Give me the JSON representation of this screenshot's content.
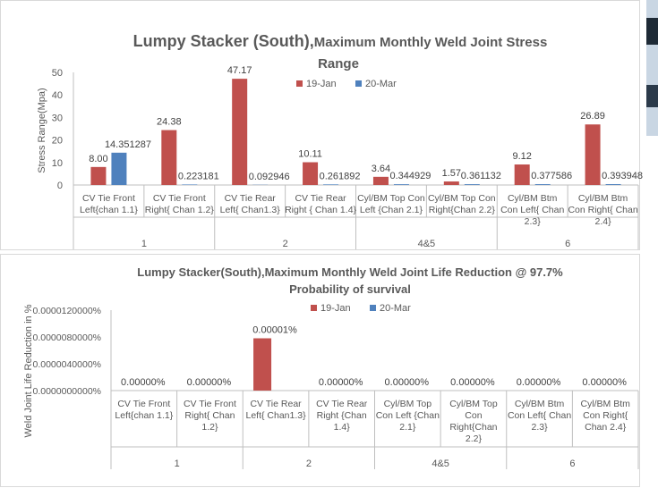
{
  "chart_data": [
    {
      "type": "bar",
      "title_bold": "Lumpy Stacker (South),",
      "title_rest_line1": "Maximum  Monthly  Weld Joint Stress",
      "title_line2": "Range",
      "ylabel": "Stress Range(Mpa)",
      "ylim": [
        0,
        50
      ],
      "yticks": [
        "0",
        "10",
        "20",
        "30",
        "40",
        "50"
      ],
      "legend_position": "top",
      "categories": [
        [
          "CV Tie Front",
          "Left{chan 1.1}"
        ],
        [
          "CV Tie Front",
          "Right{ Chan 1.2}"
        ],
        [
          "CV Tie Rear",
          "Left{ Chan1.3}"
        ],
        [
          "CV Tie Rear",
          "Right { Chan 1.4}"
        ],
        [
          "Cyl/BM Top Con",
          "Left {Chan 2.1}"
        ],
        [
          "Cyl/BM Top Con",
          "Right{Chan 2.2}"
        ],
        [
          "Cyl/BM Btm",
          "Con Left{ Chan",
          "2.3}"
        ],
        [
          "Cyl/BM Btm",
          "Con Right{ Chan",
          "2.4}"
        ]
      ],
      "groups": [
        "1",
        "2",
        "4&5",
        "6"
      ],
      "series": [
        {
          "name": "19-Jan",
          "color": "#C0504D",
          "values": [
            8.0,
            24.38,
            47.17,
            10.11,
            3.64,
            1.57,
            9.12,
            26.89
          ],
          "labels": [
            "8.00",
            "24.38",
            "47.17",
            "10.11",
            "3.64",
            "1.57",
            "9.12",
            "26.89"
          ]
        },
        {
          "name": "20-Mar",
          "color": "#4F81BD",
          "values": [
            14.351287,
            0.223181,
            0.092946,
            0.261892,
            0.344929,
            0.361132,
            0.377586,
            0.393948
          ],
          "labels": [
            "14.351287",
            "0.223181",
            "0.092946",
            "0.261892",
            "0.344929",
            "0.361132",
            "0.377586",
            "0.393948"
          ]
        }
      ]
    },
    {
      "type": "bar",
      "title_line1": "Lumpy Stacker(South),Maximum Monthly Weld Joint Life Reduction @ 97.7%",
      "title_line2": "Probability of survival",
      "ylabel": "Weld Joint Life Reduction in %",
      "ylim": [
        0,
        1.2e-05
      ],
      "yticks": [
        "0.0000000000%",
        "0.0000040000%",
        "0.0000080000%",
        "0.0000120000%"
      ],
      "legend_position": "top",
      "categories": [
        [
          "CV Tie Front",
          "Left{chan 1.1}"
        ],
        [
          "CV Tie Front",
          "Right{ Chan",
          "1.2}"
        ],
        [
          "CV Tie Rear",
          "Left{ Chan1.3}"
        ],
        [
          "CV Tie Rear",
          "Right {Chan",
          "1.4}"
        ],
        [
          "Cyl/BM Top",
          "Con Left {Chan",
          "2.1}"
        ],
        [
          "Cyl/BM Top",
          "Con",
          "Right{Chan",
          "2.2}"
        ],
        [
          "Cyl/BM Btm",
          "Con Left{ Chan",
          "2.3}"
        ],
        [
          "Cyl/BM Btm",
          "Con Right{",
          "Chan 2.4}"
        ]
      ],
      "groups": [
        "1",
        "2",
        "4&5",
        "6"
      ],
      "series": [
        {
          "name": "19-Jan",
          "color": "#C0504D",
          "values": [
            0,
            0,
            7.8e-06,
            0,
            0,
            0,
            0,
            0
          ],
          "labels": [
            "0.00000%",
            "0.00000%",
            "0.00001%",
            "0.00000%",
            "0.00000%",
            "0.00000%",
            "0.00000%",
            "0.00000%"
          ]
        },
        {
          "name": "20-Mar",
          "color": "#4F81BD",
          "values": [
            0,
            0,
            0,
            0,
            0,
            0,
            0,
            0
          ],
          "labels": []
        }
      ]
    }
  ]
}
